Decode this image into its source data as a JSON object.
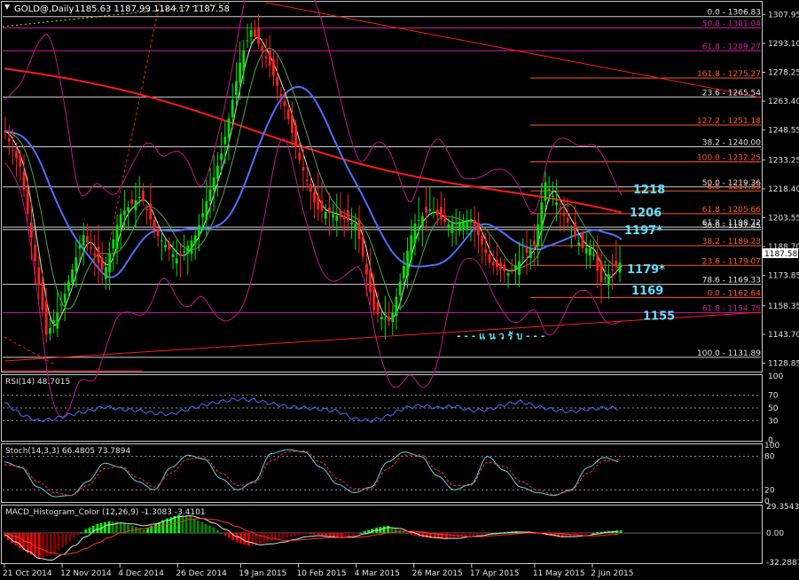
{
  "header": {
    "symbol": "GOLD@,Daily",
    "ohlc": "1185.63 1187.99 1184.17 1187.58"
  },
  "colors": {
    "bull": "#00e000",
    "bear": "#ff2020",
    "ma200": "#ff1a1a",
    "ma50": "#4f6fff",
    "bollinger": "#c0148c",
    "levels": "#ff5a1e",
    "cyan": "#5fe0ff",
    "grid": "#c8c8c8"
  },
  "price_axis": {
    "labels": [
      "1307.95",
      "1293.10",
      "1278.25",
      "1263.40",
      "1248.55",
      "1233.25",
      "1218.40",
      "1203.55",
      "1188.70",
      "1173.85",
      "1158.35",
      "1143.70",
      "1128.85"
    ],
    "current": "1187.58",
    "min": 1125,
    "max": 1314
  },
  "chart_data": [
    {
      "type": "candlestick",
      "title": "GOLD@,Daily",
      "x_labels": [
        "21 Oct 2014",
        "12 Nov 2014",
        "4 Dec 2014",
        "26 Dec 2014",
        "19 Jan 2015",
        "10 Feb 2015",
        "4 Mar 2015",
        "26 Mar 2015",
        "17 Apr 2015",
        "11 May 2015",
        "2 Jun 2015"
      ],
      "close_path": [
        [
          "21 Oct 2014",
          1248
        ],
        [
          "27 Oct 2014",
          1230
        ],
        [
          "3 Nov 2014",
          1170
        ],
        [
          "6 Nov 2014",
          1143
        ],
        [
          "12 Nov 2014",
          1160
        ],
        [
          "20 Nov 2014",
          1195
        ],
        [
          "28 Nov 2014",
          1175
        ],
        [
          "4 Dec 2014",
          1205
        ],
        [
          "12 Dec 2014",
          1215
        ],
        [
          "18 Dec 2014",
          1195
        ],
        [
          "26 Dec 2014",
          1182
        ],
        [
          "2 Jan 2015",
          1195
        ],
        [
          "12 Jan 2015",
          1238
        ],
        [
          "19 Jan 2015",
          1285
        ],
        [
          "23 Jan 2015",
          1300
        ],
        [
          "30 Jan 2015",
          1282
        ],
        [
          "5 Feb 2015",
          1260
        ],
        [
          "10 Feb 2015",
          1235
        ],
        [
          "17 Feb 2015",
          1208
        ],
        [
          "24 Feb 2015",
          1205
        ],
        [
          "4 Mar 2015",
          1200
        ],
        [
          "11 Mar 2015",
          1155
        ],
        [
          "17 Mar 2015",
          1150
        ],
        [
          "26 Mar 2015",
          1200
        ],
        [
          "1 Apr 2015",
          1208
        ],
        [
          "8 Apr 2015",
          1200
        ],
        [
          "17 Apr 2015",
          1203
        ],
        [
          "24 Apr 2015",
          1180
        ],
        [
          "1 May 2015",
          1175
        ],
        [
          "11 May 2015",
          1190
        ],
        [
          "15 May 2015",
          1222
        ],
        [
          "22 May 2015",
          1205
        ],
        [
          "29 May 2015",
          1188
        ],
        [
          "2 Jun 2015",
          1188
        ],
        [
          "5 Jun 2015",
          1170
        ],
        [
          "12 Jun 2015",
          1180
        ],
        [
          "18 Jun 2015",
          1187.58
        ]
      ],
      "fib_levels": [
        {
          "label": "0.0 - 1306.83",
          "price": 1306.83
        },
        {
          "label": "50.0 - 1301.04",
          "price": 1301.04
        },
        {
          "label": "61.8 - 1289.27",
          "price": 1289.27
        },
        {
          "label": "161.8 - 1275.27",
          "price": 1275.27
        },
        {
          "label": "23.6 - 1265.54",
          "price": 1265.54
        },
        {
          "label": "127.2 - 1251.18",
          "price": 1251.18
        },
        {
          "label": "38.2 - 1240.00",
          "price": 1240.0
        },
        {
          "label": "100.0 - 1232.25",
          "price": 1232.25
        },
        {
          "label": "50.0 - 1219.36",
          "price": 1219.36
        },
        {
          "label": "8.6 - 1217.35",
          "price": 1217.35
        },
        {
          "label": "61.8 - 1205.66",
          "price": 1205.66
        },
        {
          "label": "61.8 - 1198.72",
          "price": 1198.72
        },
        {
          "label": "50.0 - 1197.45",
          "price": 1197.45
        },
        {
          "label": "38.2 - 1189.23",
          "price": 1189.23
        },
        {
          "label": "23.6 - 1179.07",
          "price": 1179.07
        },
        {
          "label": "78.6 - 1169.33",
          "price": 1169.33
        },
        {
          "label": "0.0 - 1162.64",
          "price": 1162.64
        },
        {
          "label": "61.8 - 1154.75",
          "price": 1154.75
        },
        {
          "label": "100.0 - 1131.89",
          "price": 1131.89
        }
      ],
      "annotations": [
        {
          "text": "1218",
          "price": 1218
        },
        {
          "text": "1206",
          "price": 1206
        },
        {
          "text": "1197*",
          "price": 1197
        },
        {
          "text": "1179*",
          "price": 1177
        },
        {
          "text": "1169",
          "price": 1166
        },
        {
          "text": "1155",
          "price": 1153
        },
        {
          "text": "- - - แ น ว รั บ - - -",
          "price": 1143
        }
      ]
    },
    {
      "type": "line",
      "title": "RSI(14) 48.7015",
      "ylim": [
        0,
        100
      ],
      "tick_labels": [
        "100",
        "70",
        "50",
        "30",
        "0"
      ],
      "values": [
        58,
        40,
        30,
        33,
        40,
        45,
        52,
        48,
        46,
        42,
        40,
        48,
        55,
        60,
        64,
        62,
        57,
        52,
        50,
        48,
        45,
        33,
        30,
        37,
        50,
        54,
        50,
        53,
        46,
        47,
        55,
        60,
        52,
        47,
        44,
        48,
        50,
        49
      ]
    },
    {
      "type": "line",
      "title": "Stoch(14,3,3) 66.4805 73.7894",
      "ylim": [
        0,
        100
      ],
      "tick_labels": [
        "100",
        "80",
        "20",
        "0"
      ],
      "main": [
        70,
        60,
        25,
        8,
        10,
        35,
        68,
        60,
        35,
        20,
        60,
        82,
        75,
        40,
        20,
        35,
        85,
        92,
        88,
        60,
        30,
        15,
        25,
        70,
        88,
        80,
        45,
        20,
        30,
        80,
        55,
        25,
        15,
        10,
        20,
        60,
        78,
        70
      ],
      "signal": [
        65,
        62,
        35,
        15,
        10,
        28,
        58,
        62,
        42,
        25,
        50,
        75,
        78,
        50,
        28,
        32,
        72,
        88,
        90,
        70,
        40,
        22,
        22,
        58,
        82,
        83,
        55,
        28,
        28,
        70,
        62,
        35,
        20,
        12,
        18,
        50,
        72,
        74
      ]
    },
    {
      "type": "bar",
      "title": "MACD_Histogram_Color (12,26,9) -1.3083 -3.4101",
      "tick_labels": [
        "29.3543",
        "0.00",
        "-32.2887"
      ],
      "ylim": [
        -32.2887,
        29.3543
      ],
      "histogram": [
        -5,
        -14,
        -22,
        -28,
        -25,
        -16,
        -6,
        4,
        10,
        13,
        12,
        8,
        4,
        10,
        16,
        20,
        18,
        12,
        6,
        -3,
        -10,
        -14,
        -12,
        -9,
        -6,
        -3,
        -1,
        -2,
        -4,
        -6,
        -3,
        2,
        6,
        8,
        3,
        -2,
        -5,
        -6,
        -7,
        -5,
        -3,
        -2,
        0,
        1,
        2,
        1.5,
        -1,
        -3,
        -5,
        -4,
        -2,
        1,
        2,
        3
      ],
      "macd_line": [
        -2,
        -10,
        -20,
        -28,
        -30,
        -24,
        -14,
        -4,
        4,
        9,
        11,
        10,
        8,
        10,
        14,
        18,
        19,
        16,
        11,
        4,
        -4,
        -10,
        -13,
        -12,
        -10,
        -7,
        -4,
        -3,
        -4,
        -5,
        -4,
        -1,
        3,
        6,
        5,
        1,
        -3,
        -5,
        -6,
        -6,
        -4,
        -3,
        -1,
        0,
        1,
        1,
        0,
        -2,
        -4,
        -4,
        -3,
        -1,
        1,
        2
      ],
      "signal_line": [
        0,
        -4,
        -10,
        -17,
        -22,
        -24,
        -22,
        -17,
        -11,
        -5,
        0,
        3,
        5,
        7,
        9,
        12,
        15,
        16,
        15,
        12,
        7,
        2,
        -3,
        -6,
        -8,
        -8,
        -7,
        -6,
        -5,
        -5,
        -5,
        -4,
        -2,
        0,
        2,
        2,
        1,
        -1,
        -2,
        -3,
        -4,
        -4,
        -3,
        -2,
        -1,
        0,
        0,
        0,
        -1,
        -2,
        -3,
        -3,
        -2,
        -1
      ]
    }
  ]
}
